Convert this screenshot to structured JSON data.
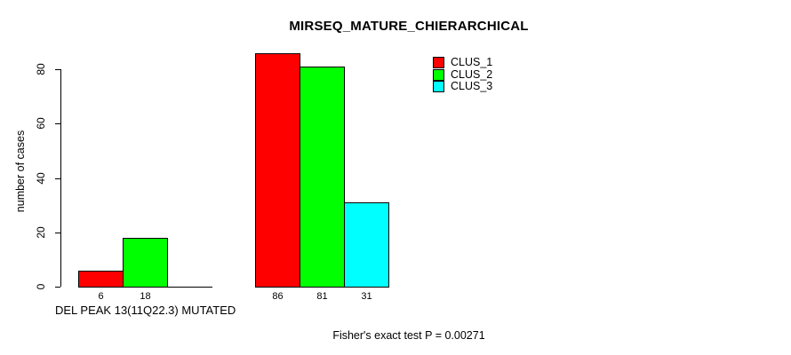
{
  "chart_data": {
    "type": "bar",
    "title": "MIRSEQ_MATURE_CHIERARCHICAL",
    "xlabel": "DEL PEAK 13(11Q22.3) MUTATED",
    "ylabel": "number of cases",
    "ylim": [
      0,
      86
    ],
    "yticks": [
      0,
      20,
      40,
      60,
      80
    ],
    "grid": false,
    "legend_position": "top-right",
    "groups": [
      "group-1",
      "group-2"
    ],
    "series": [
      {
        "name": "CLUS_1",
        "color": "#FF0000",
        "values": [
          6,
          86
        ]
      },
      {
        "name": "CLUS_2",
        "color": "#00FF00",
        "values": [
          18,
          81
        ]
      },
      {
        "name": "CLUS_3",
        "color": "#00FFFF",
        "values": [
          0,
          31
        ]
      }
    ],
    "bar_labels": [
      [
        "6",
        "18",
        ""
      ],
      [
        "86",
        "81",
        "31"
      ]
    ],
    "annotation": "Fisher's exact test P = 0.00271"
  },
  "colors": {
    "background": "#FFFFFF",
    "axis": "#000000",
    "text": "#000000"
  }
}
